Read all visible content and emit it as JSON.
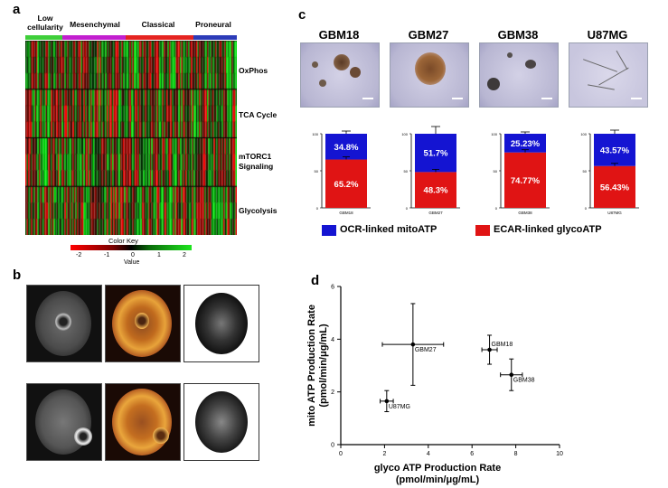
{
  "panels": {
    "a": "a",
    "b": "b",
    "c": "c",
    "d": "d"
  },
  "heatmap": {
    "subtypes": [
      {
        "label": "Low\ncellularity",
        "color": "#3fcf3a"
      },
      {
        "label": "Mesenchymal",
        "color": "#c21fcf"
      },
      {
        "label": "Classical",
        "color": "#e52421"
      },
      {
        "label": "Proneural",
        "color": "#2c3bb8"
      }
    ],
    "rows": [
      "OxPhos",
      "TCA Cycle",
      "mTORC1\nSignaling",
      "Glycolysis"
    ],
    "color_key": {
      "title": "Color Key",
      "ticks": [
        "-2",
        "-1",
        "0",
        "1",
        "2"
      ],
      "xlabel": "Value"
    }
  },
  "cells": [
    "GBM18",
    "GBM27",
    "GBM38",
    "U87MG"
  ],
  "bars": {
    "legend": [
      {
        "label": "OCR-linked mitoATP",
        "color": "#1414d2"
      },
      {
        "label": "ECAR-linked glycoATP",
        "color": "#e01414"
      }
    ],
    "y_ticks": [
      "0",
      "50",
      "100"
    ],
    "items": [
      {
        "cell": "GBM18",
        "ecar": 65.2,
        "ocr": 34.8,
        "ecar_label": "65.2%",
        "ocr_label": "34.8%",
        "xlabel": "GBM18"
      },
      {
        "cell": "GBM27",
        "ecar": 48.3,
        "ocr": 51.7,
        "ecar_label": "48.3%",
        "ocr_label": "51.7%",
        "xlabel": "GBM27"
      },
      {
        "cell": "GBM38",
        "ecar": 74.77,
        "ocr": 25.23,
        "ecar_label": "74.77%",
        "ocr_label": "25.23%",
        "xlabel": "GBM38"
      },
      {
        "cell": "U87MG",
        "ecar": 56.43,
        "ocr": 43.57,
        "ecar_label": "56.43%",
        "ocr_label": "43.57%",
        "xlabel": "U87MG"
      }
    ]
  },
  "chart_data": {
    "type": "scatter",
    "title": "",
    "xlabel": "glyco ATP Production Rate\n(pmol/min/μg/mL)",
    "ylabel": "mito ATP Production Rate\n(pmol/min/μg/mL)",
    "xlim": [
      0,
      10
    ],
    "ylim": [
      0,
      6
    ],
    "x_ticks": [
      "0",
      "2",
      "4",
      "6",
      "8",
      "10"
    ],
    "y_ticks": [
      "0",
      "2",
      "4",
      "6"
    ],
    "points": [
      {
        "label": "GBM27",
        "x": 3.3,
        "y": 3.8,
        "xerr": 1.4,
        "yerr": 1.55
      },
      {
        "label": "GBM18",
        "x": 6.8,
        "y": 3.6,
        "xerr": 0.35,
        "yerr": 0.55
      },
      {
        "label": "GBM38",
        "x": 7.8,
        "y": 2.65,
        "xerr": 0.5,
        "yerr": 0.6
      },
      {
        "label": "U87MG",
        "x": 2.1,
        "y": 1.65,
        "xerr": 0.3,
        "yerr": 0.4
      }
    ]
  }
}
